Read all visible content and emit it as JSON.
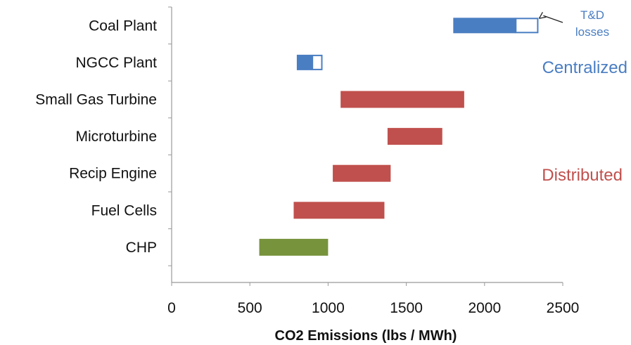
{
  "chart_data": {
    "type": "bar",
    "orientation": "horizontal-range",
    "categories": [
      "Coal Plant",
      "NGCC Plant",
      "Small Gas Turbine",
      "Microturbine",
      "Recip Engine",
      "Fuel Cells",
      "CHP"
    ],
    "ranges": [
      {
        "category": "Coal Plant",
        "low": 1800,
        "high": 2200,
        "td_losses_high": 2340,
        "group": "centralized"
      },
      {
        "category": "NGCC Plant",
        "low": 800,
        "high": 900,
        "td_losses_high": 960,
        "group": "centralized"
      },
      {
        "category": "Small Gas Turbine",
        "low": 1080,
        "high": 1870,
        "group": "distributed"
      },
      {
        "category": "Microturbine",
        "low": 1380,
        "high": 1730,
        "group": "distributed"
      },
      {
        "category": "Recip Engine",
        "low": 1030,
        "high": 1400,
        "group": "distributed"
      },
      {
        "category": "Fuel Cells",
        "low": 780,
        "high": 1360,
        "group": "distributed"
      },
      {
        "category": "CHP",
        "low": 560,
        "high": 1000,
        "group": "chp"
      }
    ],
    "xlabel": "CO2 Emissions (lbs / MWh)",
    "xlim": [
      0,
      2500
    ],
    "xticks": [
      0,
      500,
      1000,
      1500,
      2000,
      2500
    ],
    "grid": false,
    "annotations": {
      "td_losses": "T&D\nlosses",
      "centralized": "Centralized",
      "distributed": "Distributed"
    },
    "colors": {
      "centralized": "#4a7ec2",
      "distributed": "#c0504d",
      "chp": "#77933c",
      "axis": "#999999"
    }
  }
}
